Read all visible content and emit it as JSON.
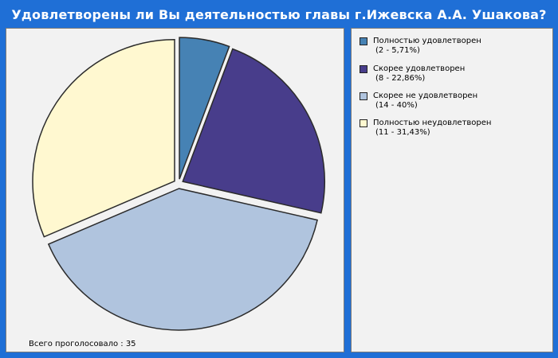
{
  "title": "Удовлетворены ли Вы деятельностью главы г.Ижевска А.А. Ушакова?",
  "total_label": "Всего проголосовало : 35",
  "colors": {
    "background": "#1f6fd6",
    "panel": "#f2f2f2",
    "slice_border": "#2b2b2b"
  },
  "chart_data": {
    "type": "pie",
    "title": "Удовлетворены ли Вы деятельностью главы г.Ижевска А.А. Ушакова?",
    "total": 35,
    "slices": [
      {
        "label": "Полностью удовлетворен",
        "value": 2,
        "detail": "(2 - 5,71%)",
        "color": "#4682b4"
      },
      {
        "label": "Скорее удовлетворен",
        "value": 8,
        "detail": "(8 - 22,86%)",
        "color": "#483d8b"
      },
      {
        "label": "Скорее не удовлетворен",
        "value": 14,
        "detail": "(14 - 40%)",
        "color": "#b0c4de"
      },
      {
        "label": "Полностью неудовлетворен",
        "value": 11,
        "detail": "(11 - 31,43%)",
        "color": "#fff8d0"
      }
    ],
    "legend_position": "right"
  }
}
